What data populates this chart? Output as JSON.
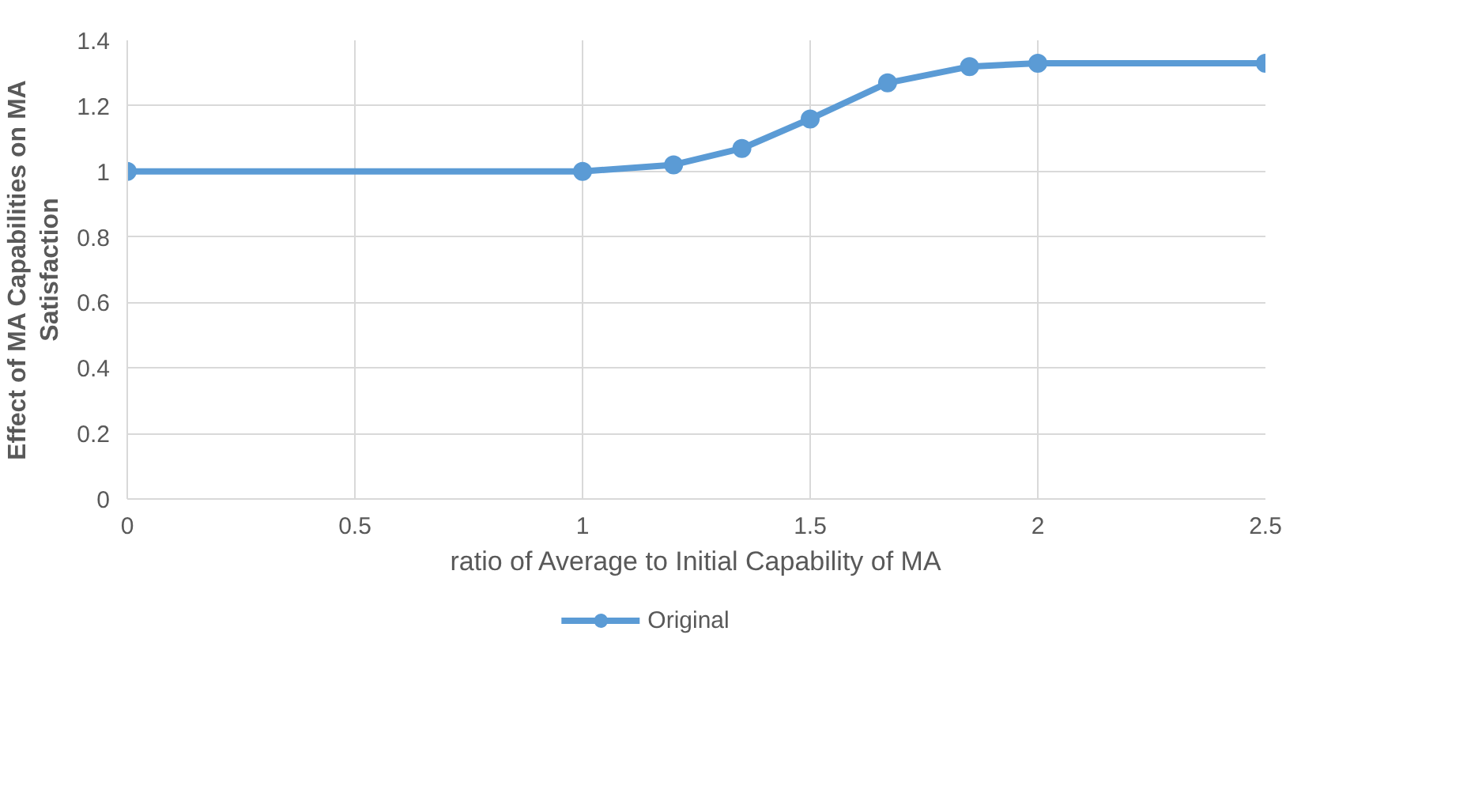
{
  "chart_data": {
    "type": "line",
    "xlabel": "ratio of Average to Initial Capability of MA",
    "ylabel": "Effect of MA Capabilities on MA\nSatisfaction",
    "x": [
      0,
      1,
      1.2,
      1.35,
      1.5,
      1.67,
      1.85,
      2,
      2.5
    ],
    "series": [
      {
        "name": "Original",
        "color": "#5b9bd5",
        "values": [
          1,
          1,
          1.02,
          1.07,
          1.16,
          1.27,
          1.32,
          1.33,
          1.33
        ]
      }
    ],
    "xlim": [
      0,
      2.5
    ],
    "xticks": [
      0,
      0.5,
      1,
      1.5,
      2,
      2.5
    ],
    "ylim": [
      0,
      1.4
    ],
    "yticks": [
      0,
      0.2,
      0.4,
      0.6,
      0.8,
      1,
      1.2,
      1.4
    ],
    "grid": true,
    "legend": "bottom",
    "marker": "circle",
    "line_style": "solid"
  }
}
